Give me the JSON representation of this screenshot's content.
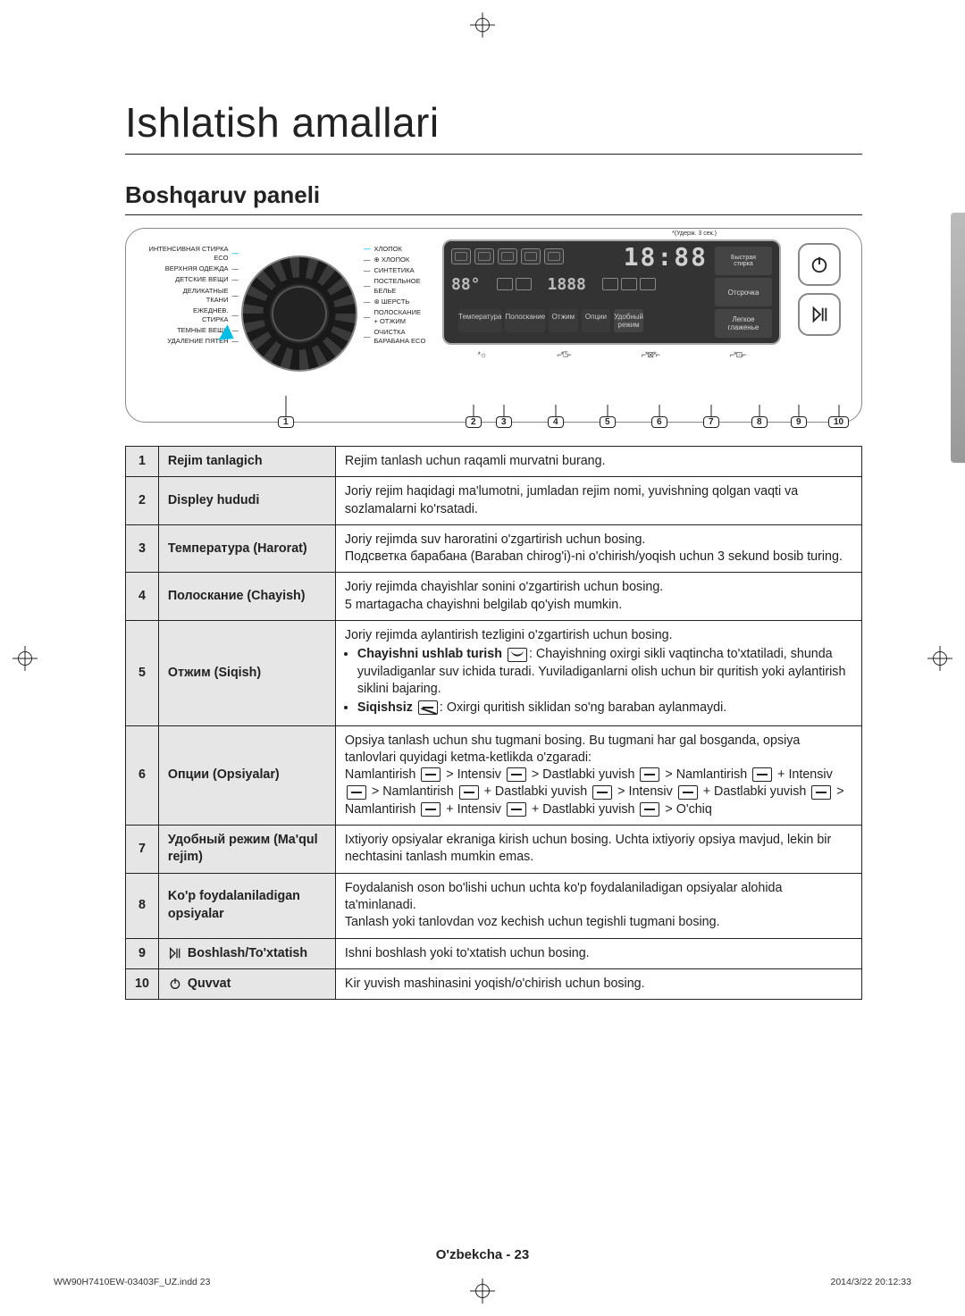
{
  "page": {
    "title": "Ishlatish amallari",
    "section": "Boshqaruv paneli",
    "footer_lang": "O'zbekcha - 23",
    "indd": "WW90H7410EW-03403F_UZ.indd   23",
    "timestamp": "2014/3/22   20:12:33"
  },
  "dial": {
    "left": [
      "ИНТЕНСИВНАЯ СТИРКА ECO",
      "ВЕРХНЯЯ ОДЕЖДА",
      "ДЕТСКИЕ ВЕЩИ",
      "ДЕЛИКАТНЫЕ\nТКАНИ",
      "ЕЖЕДНЕВ.\nСТИРКА",
      "ТЕМНЫЕ ВЕЩИ",
      "УДАЛЕНИЕ ПЯТЕН"
    ],
    "right": [
      "ХЛОПОК",
      "⊕ ХЛОПОК",
      "СИНТЕТИКА",
      "ПОСТЕЛЬНОЕ\nБЕЛЬЕ",
      "⊛ ШЕРСТЬ",
      "ПОЛОСКАНИЕ\n+ ОТЖИМ",
      "ОЧИСТКА\nБАРАБАНА ECO"
    ]
  },
  "lcd": {
    "hold_note": "*(Удерж. 3 сек.)",
    "digits": "18:88",
    "side_buttons": [
      "Быстрая\nстирка",
      "Отсрочка",
      "Легкое\nглаженье"
    ],
    "bottom_buttons": [
      "Температура",
      "Полоскание",
      "Отжим",
      "Опции",
      "Удобный\nрежим"
    ],
    "seg_icons": [
      "*☼",
      "⌐*⍰⌐",
      "⌐*⊠*⌐",
      "⌐*⊡⌐"
    ]
  },
  "callouts": [
    "1",
    "2",
    "3",
    "4",
    "5",
    "6",
    "7",
    "8",
    "9",
    "10"
  ],
  "table": [
    {
      "n": "1",
      "name": "Rejim tanlagich",
      "desc": "Rejim tanlash uchun raqamli murvatni burang."
    },
    {
      "n": "2",
      "name": "Displey hududi",
      "desc": "Joriy rejim haqidagi ma'lumotni, jumladan rejim nomi, yuvishning qolgan vaqti va sozlamalarni ko'rsatadi."
    },
    {
      "n": "3",
      "name": "Температура (Harorat)",
      "desc": "Joriy rejimda suv haroratini o'zgartirish uchun bosing.\nПодсветка барабана (Baraban chirog'i)-ni o'chirish/yoqish uchun 3 sekund bosib turing."
    },
    {
      "n": "4",
      "name": "Полоскание (Chayish)",
      "desc": "Joriy rejimda chayishlar sonini o'zgartirish uchun bosing.\n5 martagacha chayishni belgilab qo'yish mumkin."
    },
    {
      "n": "5",
      "name": "Отжим (Siqish)",
      "desc_intro": "Joriy rejimda aylantirish tezligini o'zgartirish uchun bosing.",
      "bullets": [
        {
          "b": "Chayishni ushlab turish",
          "icon": "wave",
          "t": ": Chayishning oxirgi sikli vaqtincha to'xtatiladi, shunda yuviladiganlar suv ichida turadi. Yuviladiganlarni olish uchun bir quritish yoki aylantirish siklini bajaring."
        },
        {
          "b": "Siqishsiz",
          "icon": "slash",
          "t": ": Oxirgi quritish siklidan so'ng baraban aylanmaydi."
        }
      ]
    },
    {
      "n": "6",
      "name": "Опции (Opsiyalar)",
      "desc": "Opsiya tanlash uchun shu tugmani bosing. Bu tugmani har gal bosganda, opsiya tanlovlari quyidagi ketma-ketlikda o'zgaradi:\nNamlantirish ☐ > Intensiv ☐ > Dastlabki yuvish ☐ > Namlantirish ☐ + Intensiv ☐ > Namlantirish ☐ + Dastlabki yuvish ☐ > Intensiv ☐ + Dastlabki yuvish ☐ > Namlantirish ☐ + Intensiv ☐ + Dastlabki yuvish ☐ > O'chiq"
    },
    {
      "n": "7",
      "name": "Удобный режим (Ma'qul rejim)",
      "desc": "Ixtiyoriy opsiyalar ekraniga kirish uchun bosing. Uchta ixtiyoriy opsiya mavjud, lekin bir nechtasini tanlash mumkin emas."
    },
    {
      "n": "8",
      "name": "Ko'p foydalaniladigan opsiyalar",
      "desc": "Foydalanish oson bo'lishi uchun uchta ko'p foydalaniladigan opsiyalar alohida ta'minlanadi.\nTanlash yoki tanlovdan voz kechish uchun tegishli tugmani bosing."
    },
    {
      "n": "9",
      "name_sym": "playpause",
      "name": "Boshlash/To'xtatish",
      "desc": "Ishni boshlash yoki to'xtatish uchun bosing."
    },
    {
      "n": "10",
      "name_sym": "power",
      "name": "Quvvat",
      "desc": "Kir yuvish mashinasini yoqish/o'chirish uchun bosing."
    }
  ]
}
